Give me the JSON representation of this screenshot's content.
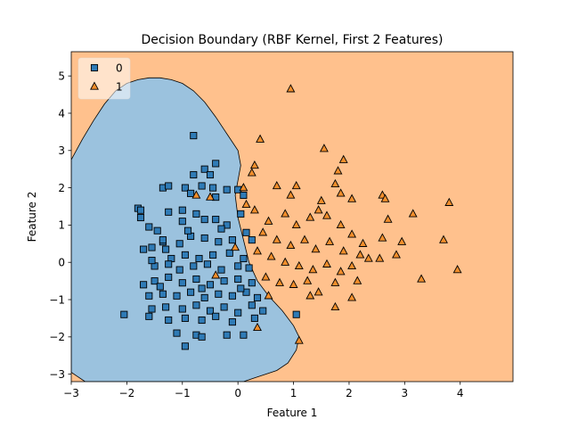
{
  "chart_data": {
    "type": "scatter",
    "title": "Decision Boundary (RBF Kernel, First 2 Features)",
    "xlabel": "Feature 1",
    "ylabel": "Feature 2",
    "xlim": [
      -3.0,
      4.95
    ],
    "ylim": [
      -3.2,
      5.65
    ],
    "xticks": [
      -3,
      -2,
      -1,
      0,
      1,
      2,
      3,
      4
    ],
    "yticks": [
      -3,
      -2,
      -1,
      0,
      1,
      2,
      3,
      4,
      5
    ],
    "grid": false,
    "legend_placement": "top-left",
    "background_region": {
      "label": "1",
      "color": "#ffc18d"
    },
    "regions": [
      {
        "label": "0",
        "color": "#9bc2de",
        "boundary": [
          [
            -3.0,
            2.75
          ],
          [
            -2.8,
            3.3
          ],
          [
            -2.6,
            3.8
          ],
          [
            -2.4,
            4.25
          ],
          [
            -2.2,
            4.6
          ],
          [
            -2.0,
            4.8
          ],
          [
            -1.8,
            4.9
          ],
          [
            -1.6,
            4.95
          ],
          [
            -1.4,
            4.95
          ],
          [
            -1.2,
            4.9
          ],
          [
            -1.0,
            4.8
          ],
          [
            -0.8,
            4.6
          ],
          [
            -0.6,
            4.3
          ],
          [
            -0.4,
            3.9
          ],
          [
            -0.2,
            3.45
          ],
          [
            0.0,
            3.0
          ],
          [
            0.05,
            2.6
          ],
          [
            0.0,
            2.2
          ],
          [
            -0.05,
            1.8
          ],
          [
            0.0,
            1.2
          ],
          [
            0.1,
            0.6
          ],
          [
            0.2,
            0.0
          ],
          [
            0.35,
            -0.5
          ],
          [
            0.55,
            -0.9
          ],
          [
            0.8,
            -1.3
          ],
          [
            1.0,
            -1.7
          ],
          [
            1.1,
            -2.0
          ],
          [
            1.05,
            -2.35
          ],
          [
            0.9,
            -2.7
          ],
          [
            0.7,
            -2.9
          ],
          [
            0.5,
            -3.0
          ],
          [
            0.3,
            -3.1
          ],
          [
            0.1,
            -3.2
          ],
          [
            -2.75,
            -3.2
          ],
          [
            -2.9,
            -3.05
          ],
          [
            -3.0,
            -2.95
          ]
        ]
      }
    ],
    "series": [
      {
        "name": "0",
        "marker": "square",
        "color": "#2f7bb6",
        "points": [
          [
            -0.8,
            3.4
          ],
          [
            -0.4,
            2.65
          ],
          [
            -0.6,
            2.5
          ],
          [
            -0.5,
            2.35
          ],
          [
            -0.8,
            2.35
          ],
          [
            -1.35,
            2.0
          ],
          [
            -1.25,
            2.05
          ],
          [
            -0.95,
            2.0
          ],
          [
            -0.85,
            1.85
          ],
          [
            -0.65,
            2.05
          ],
          [
            -0.45,
            2.0
          ],
          [
            -0.2,
            1.95
          ],
          [
            -0.4,
            1.75
          ],
          [
            0.0,
            1.95
          ],
          [
            0.1,
            1.8
          ],
          [
            -1.8,
            1.45
          ],
          [
            -1.75,
            1.4
          ],
          [
            -1.75,
            1.2
          ],
          [
            -1.25,
            1.35
          ],
          [
            -1.0,
            1.4
          ],
          [
            -0.75,
            1.3
          ],
          [
            -1.0,
            1.1
          ],
          [
            -0.6,
            1.15
          ],
          [
            -0.4,
            1.15
          ],
          [
            -0.2,
            1.0
          ],
          [
            0.05,
            1.3
          ],
          [
            -1.6,
            0.95
          ],
          [
            -1.45,
            0.85
          ],
          [
            -1.35,
            0.55
          ],
          [
            -1.35,
            0.6
          ],
          [
            -1.55,
            0.4
          ],
          [
            -1.7,
            0.35
          ],
          [
            -1.3,
            0.35
          ],
          [
            -1.05,
            0.5
          ],
          [
            -0.85,
            0.7
          ],
          [
            -0.6,
            0.65
          ],
          [
            -0.35,
            0.55
          ],
          [
            -0.1,
            0.6
          ],
          [
            0.15,
            0.8
          ],
          [
            0.25,
            0.6
          ],
          [
            -1.2,
            0.1
          ],
          [
            -0.95,
            0.2
          ],
          [
            -0.7,
            0.1
          ],
          [
            -0.45,
            0.2
          ],
          [
            -0.15,
            0.25
          ],
          [
            0.1,
            0.1
          ],
          [
            -1.5,
            -0.1
          ],
          [
            -1.25,
            -0.05
          ],
          [
            -1.05,
            -0.2
          ],
          [
            -0.8,
            -0.1
          ],
          [
            -0.55,
            -0.05
          ],
          [
            -0.3,
            -0.2
          ],
          [
            0.0,
            -0.1
          ],
          [
            0.2,
            -0.15
          ],
          [
            -1.7,
            -0.6
          ],
          [
            -1.5,
            -0.5
          ],
          [
            -1.25,
            -0.4
          ],
          [
            -1.0,
            -0.55
          ],
          [
            -0.75,
            -0.45
          ],
          [
            -0.5,
            -0.6
          ],
          [
            -0.25,
            -0.5
          ],
          [
            0.0,
            -0.45
          ],
          [
            0.25,
            -0.55
          ],
          [
            -1.6,
            -0.9
          ],
          [
            -1.35,
            -0.85
          ],
          [
            -1.1,
            -0.9
          ],
          [
            -0.85,
            -0.8
          ],
          [
            -0.6,
            -0.95
          ],
          [
            -0.35,
            -0.85
          ],
          [
            -0.1,
            -0.9
          ],
          [
            0.15,
            -0.8
          ],
          [
            0.35,
            -0.95
          ],
          [
            -1.55,
            -1.25
          ],
          [
            -1.3,
            -1.2
          ],
          [
            -1.0,
            -1.25
          ],
          [
            -0.75,
            -1.15
          ],
          [
            -0.5,
            -1.3
          ],
          [
            -0.25,
            -1.2
          ],
          [
            0.0,
            -1.35
          ],
          [
            0.25,
            -1.15
          ],
          [
            0.45,
            -1.3
          ],
          [
            -2.05,
            -1.4
          ],
          [
            -1.6,
            -1.45
          ],
          [
            -1.25,
            -1.55
          ],
          [
            -0.95,
            -1.5
          ],
          [
            -0.65,
            -1.55
          ],
          [
            -0.4,
            -1.45
          ],
          [
            -0.1,
            -1.6
          ],
          [
            0.3,
            -1.5
          ],
          [
            1.05,
            -1.4
          ],
          [
            -1.1,
            -1.9
          ],
          [
            -0.75,
            -1.95
          ],
          [
            -0.65,
            -2.0
          ],
          [
            -0.2,
            -1.95
          ],
          [
            0.1,
            -1.95
          ],
          [
            -0.95,
            -2.25
          ],
          [
            -1.55,
            0.05
          ],
          [
            -0.9,
            0.85
          ],
          [
            -0.3,
            0.9
          ],
          [
            -1.4,
            -0.65
          ],
          [
            -0.65,
            -0.7
          ],
          [
            0.05,
            -0.7
          ]
        ]
      },
      {
        "name": "1",
        "marker": "triangle",
        "color": "#f28e2b",
        "points": [
          [
            0.95,
            4.65
          ],
          [
            0.4,
            3.3
          ],
          [
            1.55,
            3.05
          ],
          [
            1.9,
            2.75
          ],
          [
            1.8,
            2.45
          ],
          [
            0.3,
            2.6
          ],
          [
            0.25,
            2.4
          ],
          [
            0.7,
            2.05
          ],
          [
            0.95,
            1.8
          ],
          [
            1.05,
            2.05
          ],
          [
            1.5,
            1.65
          ],
          [
            1.75,
            2.1
          ],
          [
            1.85,
            1.85
          ],
          [
            2.05,
            1.7
          ],
          [
            2.6,
            1.8
          ],
          [
            2.65,
            1.7
          ],
          [
            2.7,
            1.15
          ],
          [
            3.15,
            1.3
          ],
          [
            3.8,
            1.6
          ],
          [
            -0.5,
            1.75
          ],
          [
            0.1,
            2.0
          ],
          [
            0.3,
            1.4
          ],
          [
            0.55,
            1.1
          ],
          [
            0.85,
            1.3
          ],
          [
            1.05,
            1.0
          ],
          [
            1.3,
            1.2
          ],
          [
            1.45,
            1.4
          ],
          [
            1.6,
            1.25
          ],
          [
            1.85,
            1.0
          ],
          [
            2.05,
            0.75
          ],
          [
            2.25,
            0.5
          ],
          [
            2.6,
            0.65
          ],
          [
            2.95,
            0.55
          ],
          [
            3.7,
            0.6
          ],
          [
            0.45,
            0.8
          ],
          [
            0.7,
            0.6
          ],
          [
            0.95,
            0.45
          ],
          [
            1.2,
            0.6
          ],
          [
            1.4,
            0.35
          ],
          [
            1.65,
            0.55
          ],
          [
            1.9,
            0.3
          ],
          [
            2.2,
            0.2
          ],
          [
            2.85,
            0.2
          ],
          [
            2.55,
            0.1
          ],
          [
            2.35,
            0.1
          ],
          [
            0.35,
            0.3
          ],
          [
            0.6,
            0.15
          ],
          [
            0.85,
            0.0
          ],
          [
            1.1,
            -0.1
          ],
          [
            1.35,
            -0.2
          ],
          [
            1.6,
            -0.05
          ],
          [
            1.85,
            -0.25
          ],
          [
            2.05,
            -0.1
          ],
          [
            0.5,
            -0.4
          ],
          [
            0.75,
            -0.55
          ],
          [
            1.0,
            -0.6
          ],
          [
            1.25,
            -0.5
          ],
          [
            1.45,
            -0.8
          ],
          [
            1.75,
            -0.55
          ],
          [
            2.15,
            -0.5
          ],
          [
            3.3,
            -0.45
          ],
          [
            3.95,
            -0.2
          ],
          [
            0.55,
            -0.9
          ],
          [
            1.3,
            -0.9
          ],
          [
            2.05,
            -0.95
          ],
          [
            1.75,
            -1.2
          ],
          [
            0.35,
            -1.75
          ],
          [
            1.1,
            -2.1
          ],
          [
            -0.75,
            1.8
          ],
          [
            0.15,
            1.55
          ],
          [
            -0.05,
            0.4
          ],
          [
            -0.4,
            -0.35
          ]
        ]
      }
    ]
  }
}
